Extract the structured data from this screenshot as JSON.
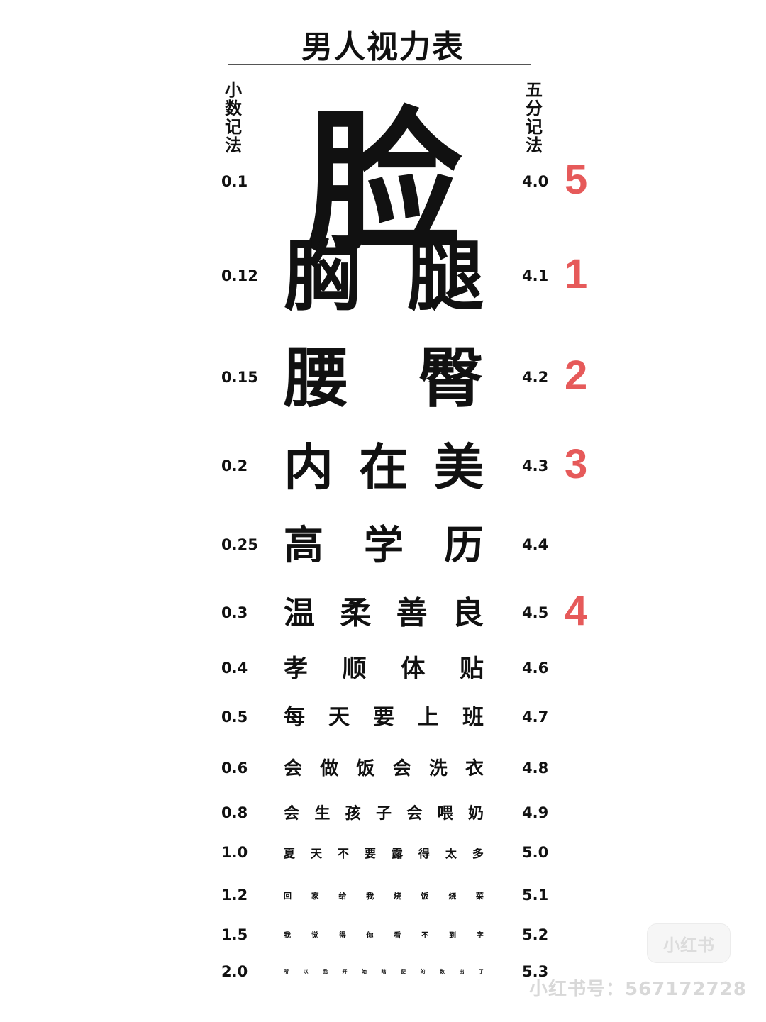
{
  "title": "男人视力表",
  "left_header": [
    "小",
    "数",
    "记",
    "法"
  ],
  "right_header": [
    "五",
    "分",
    "记",
    "法"
  ],
  "rows": [
    {
      "decimal": "0.1",
      "five": "4.0",
      "chars": [
        "脸"
      ],
      "mark": "5"
    },
    {
      "decimal": "0.12",
      "five": "4.1",
      "chars": [
        "胸",
        "腿"
      ],
      "mark": "1"
    },
    {
      "decimal": "0.15",
      "five": "4.2",
      "chars": [
        "腰",
        "臀"
      ],
      "mark": "2"
    },
    {
      "decimal": "0.2",
      "five": "4.3",
      "chars": [
        "内",
        "在",
        "美"
      ],
      "mark": "3"
    },
    {
      "decimal": "0.25",
      "five": "4.4",
      "chars": [
        "高",
        "学",
        "历"
      ],
      "mark": ""
    },
    {
      "decimal": "0.3",
      "five": "4.5",
      "chars": [
        "温",
        "柔",
        "善",
        "良"
      ],
      "mark": "4"
    },
    {
      "decimal": "0.4",
      "five": "4.6",
      "chars": [
        "孝",
        "顺",
        "体",
        "贴"
      ],
      "mark": ""
    },
    {
      "decimal": "0.5",
      "five": "4.7",
      "chars": [
        "每",
        "天",
        "要",
        "上",
        "班"
      ],
      "mark": ""
    },
    {
      "decimal": "0.6",
      "five": "4.8",
      "chars": [
        "会",
        "做",
        "饭",
        "会",
        "洗",
        "衣"
      ],
      "mark": ""
    },
    {
      "decimal": "0.8",
      "five": "4.9",
      "chars": [
        "会",
        "生",
        "孩",
        "子",
        "会",
        "喂",
        "奶"
      ],
      "mark": ""
    },
    {
      "decimal": "1.0",
      "five": "5.0",
      "chars": [
        "夏",
        "天",
        "不",
        "要",
        "露",
        "得",
        "太",
        "多"
      ],
      "mark": ""
    },
    {
      "decimal": "1.2",
      "five": "5.1",
      "chars": [
        "回",
        "家",
        "给",
        "我",
        "烧",
        "饭",
        "烧",
        "菜"
      ],
      "mark": ""
    },
    {
      "decimal": "1.5",
      "five": "5.2",
      "chars": [
        "我",
        "觉",
        "得",
        "你",
        "看",
        "不",
        "到",
        "字"
      ],
      "mark": ""
    },
    {
      "decimal": "2.0",
      "five": "5.3",
      "chars": [
        "所",
        "以",
        "我",
        "开",
        "始",
        "瞎",
        "便",
        "的",
        "数",
        "出",
        "了"
      ],
      "mark": ""
    }
  ],
  "watermark": {
    "logo": "小红书",
    "id": "小红书号：567172728"
  }
}
